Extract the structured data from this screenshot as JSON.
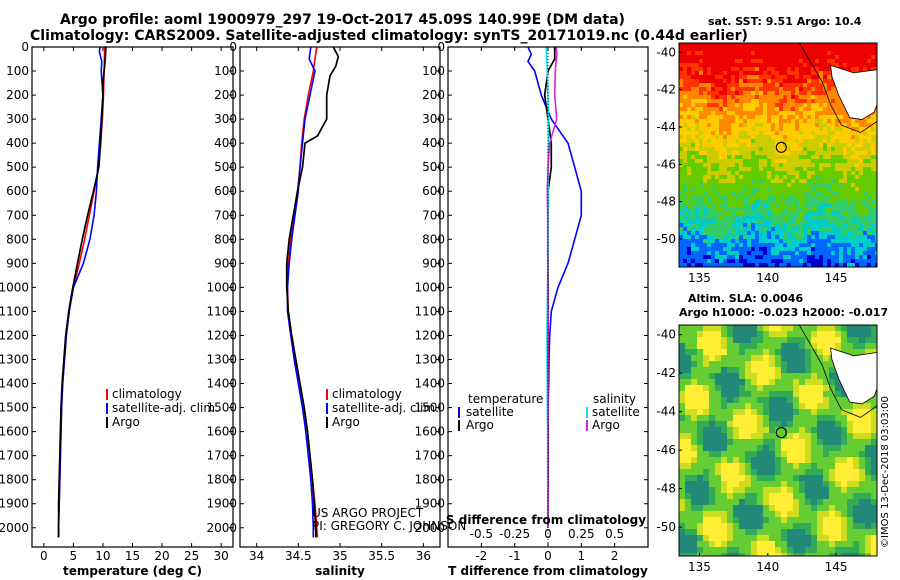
{
  "header": {
    "line1": "Argo profile: aoml 1900979_297 19-Oct-2017 45.09S 140.99E (DM data)",
    "line2": "Climatology: CARS2009. Satellite-adjusted climatology: synTS_20171019.nc (0.44d earlier)"
  },
  "colors": {
    "climatology": "#ff0000",
    "satellite": "#0000ff",
    "argo": "#000000",
    "sat_salinity": "#00e5e5",
    "argo_salinity": "#e020e0"
  },
  "depth_axis": {
    "ticks": [
      "0",
      "100",
      "200",
      "300",
      "400",
      "500",
      "600",
      "700",
      "800",
      "900",
      "1000",
      "1100",
      "1200",
      "1300",
      "1400",
      "1500",
      "1600",
      "1700",
      "1800",
      "1900",
      "2000"
    ],
    "range": [
      0,
      2080
    ]
  },
  "chart_data": [
    {
      "type": "line",
      "xlabel": "temperature (deg C)",
      "xticks": [
        "0",
        "5",
        "10",
        "15",
        "20",
        "25",
        "30"
      ],
      "xlim": [
        -2,
        32
      ],
      "legend": [
        "climatology",
        "satellite-adj. clim.",
        "Argo"
      ],
      "series": [
        {
          "name": "climatology",
          "depth": [
            0,
            100,
            200,
            300,
            400,
            500,
            600,
            700,
            800,
            900,
            1000,
            1100,
            1200,
            1300,
            1400,
            1500,
            1600,
            1700,
            1800,
            1900,
            2000,
            2040
          ],
          "values": [
            10.3,
            10.2,
            10.1,
            9.9,
            9.6,
            9.3,
            8.5,
            7.7,
            6.9,
            6.0,
            5.0,
            4.3,
            3.8,
            3.5,
            3.2,
            3.0,
            2.9,
            2.8,
            2.7,
            2.6,
            2.5,
            2.5
          ]
        },
        {
          "name": "satellite-adj. clim.",
          "depth": [
            0,
            20,
            60,
            100,
            200,
            300,
            400,
            500,
            600,
            700,
            800,
            900,
            1000,
            1100,
            1200,
            1300,
            1400,
            1500,
            1600,
            1700,
            1800,
            1900,
            2000,
            2040
          ],
          "values": [
            9.5,
            9.4,
            9.8,
            9.7,
            10.0,
            9.7,
            9.4,
            9.1,
            8.9,
            8.5,
            7.8,
            6.7,
            5.0,
            4.3,
            3.8,
            3.5,
            3.2,
            3.0,
            2.9,
            2.8,
            2.7,
            2.6,
            2.5,
            2.5
          ]
        },
        {
          "name": "Argo",
          "depth": [
            0,
            50,
            100,
            150,
            200,
            300,
            400,
            500,
            600,
            700,
            800,
            900,
            1000,
            1100,
            1200,
            1300,
            1400,
            1500,
            1600,
            1700,
            1800,
            1900,
            2000,
            2040
          ],
          "values": [
            10.5,
            10.4,
            10.2,
            10.0,
            10.0,
            9.8,
            9.6,
            9.3,
            8.4,
            7.4,
            6.5,
            5.7,
            4.9,
            4.2,
            3.7,
            3.4,
            3.1,
            2.9,
            2.8,
            2.7,
            2.6,
            2.5,
            2.5,
            2.5
          ]
        }
      ]
    },
    {
      "type": "line",
      "xlabel": "salinity",
      "xticks": [
        "34",
        "34.5",
        "35",
        "35.5",
        "36"
      ],
      "xlim": [
        33.8,
        36.2
      ],
      "legend": [
        "climatology",
        "satellite-adj. clim.",
        "Argo"
      ],
      "series": [
        {
          "name": "climatology",
          "depth": [
            0,
            100,
            200,
            300,
            400,
            500,
            600,
            700,
            800,
            900,
            1000,
            1100,
            1200,
            1300,
            1400,
            1500,
            1600,
            1700,
            1800,
            1900,
            2000,
            2040
          ],
          "values": [
            34.72,
            34.68,
            34.62,
            34.57,
            34.54,
            34.52,
            34.49,
            34.45,
            34.41,
            34.38,
            34.37,
            34.38,
            34.42,
            34.47,
            34.52,
            34.57,
            34.61,
            34.64,
            34.67,
            34.7,
            34.72,
            34.73
          ]
        },
        {
          "name": "satellite-adj. clim.",
          "depth": [
            0,
            50,
            100,
            200,
            300,
            400,
            500,
            600,
            700,
            800,
            900,
            1000,
            1100,
            1200,
            1300,
            1400,
            1500,
            1600,
            1700,
            1800,
            1900,
            2000,
            2040
          ],
          "values": [
            34.65,
            34.63,
            34.7,
            34.64,
            34.58,
            34.55,
            34.52,
            34.5,
            34.46,
            34.42,
            34.39,
            34.37,
            34.37,
            34.41,
            34.45,
            34.5,
            34.55,
            34.59,
            34.62,
            34.65,
            34.67,
            34.68,
            34.68
          ]
        },
        {
          "name": "Argo",
          "depth": [
            0,
            40,
            80,
            120,
            200,
            300,
            370,
            400,
            500,
            600,
            700,
            800,
            900,
            1000,
            1100,
            1200,
            1300,
            1400,
            1500,
            1600,
            1700,
            1800,
            1900,
            2000,
            2040
          ],
          "values": [
            34.92,
            34.98,
            34.95,
            34.88,
            34.84,
            34.84,
            34.73,
            34.58,
            34.55,
            34.49,
            34.44,
            34.39,
            34.36,
            34.36,
            34.38,
            34.42,
            34.47,
            34.52,
            34.57,
            34.61,
            34.64,
            34.67,
            34.69,
            34.71,
            34.71
          ]
        }
      ]
    },
    {
      "type": "line",
      "xlabel": "T difference from climatology",
      "xlabel_top": "S difference from climatology",
      "xticks": [
        "-2",
        "-1",
        "0",
        "1",
        "2"
      ],
      "xlim": [
        -3,
        3
      ],
      "xticks_top": [
        "-0.5",
        "-0.25",
        "0",
        "0.25",
        "0.5"
      ],
      "legend_left": [
        "temperature",
        "satellite",
        "Argo"
      ],
      "legend_right": [
        "salinity",
        "satellite",
        "Argo"
      ],
      "series": [
        {
          "name": "temperature satellite",
          "depth": [
            0,
            30,
            60,
            100,
            200,
            300,
            400,
            500,
            600,
            700,
            800,
            900,
            1000,
            1100,
            1200,
            1300,
            1400,
            1500,
            1600,
            1700,
            1800,
            1900,
            2000
          ],
          "values": [
            -0.6,
            -0.5,
            -0.6,
            -0.4,
            -0.2,
            0.1,
            0.6,
            0.8,
            1.0,
            1.0,
            0.8,
            0.6,
            0.3,
            0.1,
            0.05,
            0.03,
            0.02,
            0.0,
            0.0,
            0.0,
            0.0,
            0.0,
            0.0
          ]
        },
        {
          "name": "temperature Argo",
          "depth": [
            0,
            50,
            100,
            200,
            300,
            400,
            500,
            600,
            700,
            800,
            900,
            1000,
            1100,
            1200,
            1300,
            1400,
            1500,
            1600,
            1700,
            1800,
            1900,
            2000
          ],
          "values": [
            0.2,
            0.2,
            0.0,
            -0.1,
            0.0,
            0.1,
            0.1,
            0.0,
            0.0,
            0.0,
            0.0,
            0.0,
            0.0,
            0.0,
            0.0,
            0.0,
            0.0,
            0.0,
            0.0,
            0.0,
            0.0,
            0.0
          ]
        },
        {
          "name": "salinity satellite",
          "depth": [
            0,
            100,
            200,
            300,
            400,
            500,
            600,
            700,
            800,
            900,
            1000,
            1100,
            1200,
            1300,
            1400,
            1500,
            1600,
            1700,
            1800,
            1900,
            2000
          ],
          "values": [
            -0.05,
            -0.02,
            0.0,
            0.01,
            0.01,
            0.0,
            0.01,
            0.01,
            0.01,
            0.0,
            -0.01,
            -0.02,
            -0.03,
            -0.03,
            -0.02,
            -0.02,
            -0.01,
            -0.01,
            -0.01,
            0.0,
            0.0
          ]
        },
        {
          "name": "salinity Argo",
          "depth": [
            0,
            30,
            60,
            100,
            200,
            300,
            400,
            500,
            600,
            700,
            800,
            900,
            1000,
            1100,
            1200,
            1300,
            1400,
            1500,
            1600,
            1700,
            1800,
            1900,
            2000
          ],
          "values": [
            0.24,
            0.27,
            0.24,
            0.22,
            0.2,
            0.26,
            0.05,
            0.0,
            -0.02,
            -0.01,
            -0.01,
            -0.01,
            -0.01,
            0.0,
            0.0,
            0.0,
            0.0,
            0.0,
            0.0,
            0.0,
            0.0,
            0.0,
            0.0
          ]
        }
      ]
    }
  ],
  "credits": [
    "US ARGO PROJECT",
    "PI: GREGORY C. JOHNSON"
  ],
  "map_top": {
    "title": "sat. SST: 9.51 Argo: 10.4",
    "yticks": [
      "-40",
      "-42",
      "-44",
      "-46",
      "-48",
      "-50"
    ],
    "xticks": [
      "135",
      "140",
      "145"
    ],
    "lon": 140.99,
    "lat": -45.09
  },
  "map_bottom": {
    "title1": "Altim. SLA: 0.0046",
    "title2": "Argo h1000: -0.023 h2000: -0.017",
    "yticks": [
      "-40",
      "-42",
      "-44",
      "-46",
      "-48",
      "-50"
    ],
    "xticks": [
      "135",
      "140",
      "145"
    ],
    "lon": 140.99,
    "lat": -45.09
  },
  "stamp": "©IMOS 13-Dec-2018 03:03:00"
}
